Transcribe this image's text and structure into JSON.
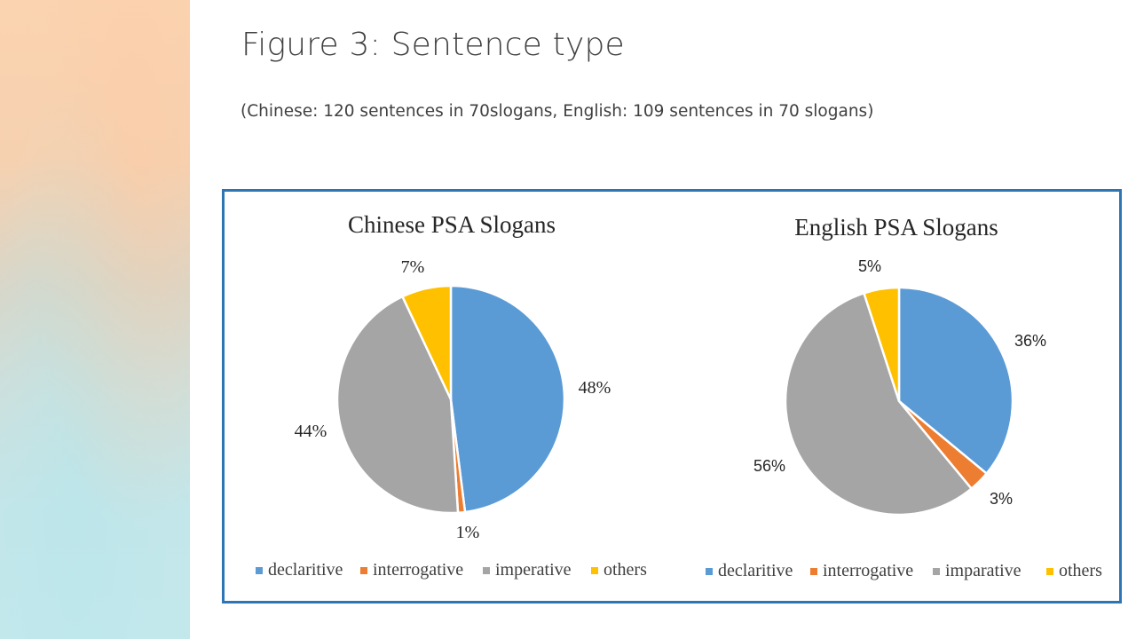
{
  "slide": {
    "title": "Figure 3: Sentence type",
    "subtitle": "(Chinese: 120 sentences in 70slogans, English: 109 sentences in 70 slogans)"
  },
  "colors": {
    "declaritive": "#5b9bd5",
    "interrogative": "#ed7d31",
    "imperative": "#a5a5a5",
    "others": "#ffc000",
    "frame": "#2e75b6"
  },
  "chart_data": [
    {
      "type": "pie",
      "title": "Chinese PSA Slogans",
      "categories": [
        "declaritive",
        "interrogative",
        "imperative",
        "others"
      ],
      "values": [
        48,
        1,
        44,
        7
      ],
      "data_labels": [
        "48%",
        "1%",
        "44%",
        "7%"
      ],
      "legend_position": "bottom"
    },
    {
      "type": "pie",
      "title": "English PSA Slogans",
      "categories": [
        "declaritive",
        "interrogative",
        "imparative",
        "others"
      ],
      "values": [
        36,
        3,
        56,
        5
      ],
      "data_labels": [
        "36%",
        "3%",
        "56%",
        "5%"
      ],
      "legend_position": "bottom"
    }
  ]
}
